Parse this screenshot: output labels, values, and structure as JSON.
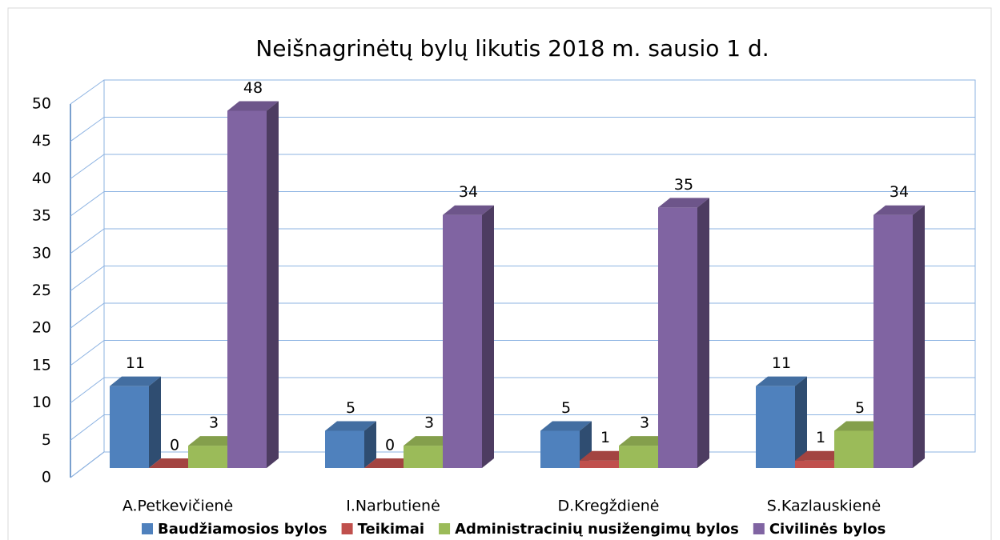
{
  "chart_data": {
    "type": "bar3d",
    "title": "Neišnagrinėtų bylų likutis 2018 m. sausio 1 d.",
    "categories": [
      "A.Petkevičienė",
      "I.Narbutienė",
      "D.Kregždienė",
      "S.Kazlauskienė"
    ],
    "series": [
      {
        "name": "Baudžiamosios bylos",
        "color": "#4f81bd",
        "values": [
          11,
          5,
          5,
          11
        ]
      },
      {
        "name": "Teikimai",
        "color": "#c0504d",
        "values": [
          0,
          0,
          1,
          1
        ]
      },
      {
        "name": "Administracinių nusižengimų bylos",
        "color": "#9bbb59",
        "values": [
          3,
          3,
          3,
          5
        ]
      },
      {
        "name": "Civilinės bylos",
        "color": "#8064a2",
        "values": [
          48,
          34,
          35,
          34
        ]
      }
    ],
    "ylim": [
      0,
      50
    ],
    "yticks": [
      0,
      5,
      10,
      15,
      20,
      25,
      30,
      35,
      40,
      45,
      50
    ],
    "grid": true,
    "legend": "bottom"
  }
}
